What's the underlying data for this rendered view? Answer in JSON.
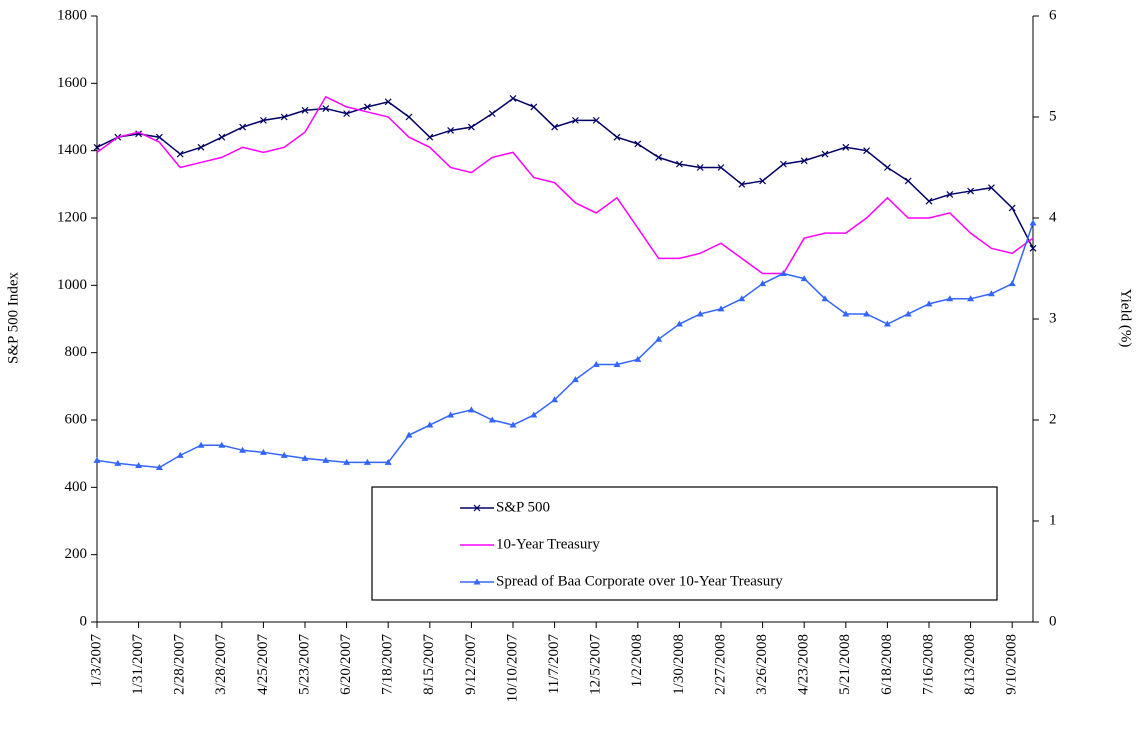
{
  "chart_data": {
    "type": "line",
    "y_label": "S&P 500 Index",
    "y2_label": "Yield (%)",
    "categories": [
      "1/3/2007",
      null,
      "1/31/2007",
      null,
      "2/28/2007",
      null,
      "3/28/2007",
      null,
      "4/25/2007",
      null,
      "5/23/2007",
      null,
      "6/20/2007",
      null,
      "7/18/2007",
      null,
      "8/15/2007",
      null,
      "9/12/2007",
      null,
      "10/10/2007",
      null,
      "11/7/2007",
      null,
      "12/5/2007",
      null,
      "1/2/2008",
      null,
      "1/30/2008",
      null,
      "2/27/2008",
      null,
      "3/26/2008",
      null,
      "4/23/2008",
      null,
      "5/21/2008",
      null,
      "6/18/2008",
      null,
      "7/16/2008",
      null,
      "8/13/2008",
      null,
      "9/10/2008",
      null
    ],
    "series": [
      {
        "name": "S&P 500",
        "color": "#000066",
        "marker": "x",
        "values": [
          1410,
          1440,
          1450,
          1440,
          1390,
          1410,
          1440,
          1470,
          1490,
          1500,
          1520,
          1525,
          1510,
          1530,
          1545,
          1500,
          1440,
          1460,
          1470,
          1510,
          1555,
          1530,
          1470,
          1490,
          1490,
          1440,
          1420,
          1380,
          1360,
          1350,
          1350,
          1300,
          1310,
          1360,
          1370,
          1390,
          1410,
          1400,
          1350,
          1310,
          1250,
          1270,
          1280,
          1290,
          1230,
          1110
        ]
      },
      {
        "name": "10-Year Treasury",
        "color": "#ff00ff",
        "axis": "y2",
        "values": [
          4.65,
          4.8,
          4.85,
          4.75,
          4.5,
          4.55,
          4.6,
          4.7,
          4.65,
          4.7,
          4.85,
          5.2,
          5.1,
          5.05,
          5.0,
          4.8,
          4.7,
          4.5,
          4.45,
          4.6,
          4.65,
          4.4,
          4.35,
          4.15,
          4.05,
          4.2,
          3.9,
          3.6,
          3.6,
          3.65,
          3.75,
          3.6,
          3.45,
          3.45,
          3.8,
          3.85,
          3.85,
          4.0,
          4.2,
          4.0,
          4.0,
          4.05,
          3.85,
          3.7,
          3.65,
          3.8
        ]
      },
      {
        "name": "Spread of Baa Corporate over 10-Year Treasury",
        "color": "#3366ff",
        "axis": "y2",
        "marker": "triangle",
        "values": [
          1.6,
          1.57,
          1.55,
          1.53,
          1.65,
          1.75,
          1.75,
          1.7,
          1.68,
          1.65,
          1.62,
          1.6,
          1.58,
          1.58,
          1.58,
          1.85,
          1.95,
          2.05,
          2.1,
          2.0,
          1.95,
          2.05,
          2.2,
          2.4,
          2.55,
          2.55,
          2.6,
          2.8,
          2.95,
          3.05,
          3.1,
          3.2,
          3.35,
          3.45,
          3.4,
          3.2,
          3.05,
          3.05,
          2.95,
          3.05,
          3.15,
          3.2,
          3.2,
          3.25,
          3.35,
          3.95
        ]
      }
    ],
    "ylim": [
      0,
      1800
    ],
    "yticks": [
      0,
      200,
      400,
      600,
      800,
      1000,
      1200,
      1400,
      1600,
      1800
    ],
    "y2lim": [
      0,
      6
    ],
    "y2ticks": [
      0,
      1,
      2,
      3,
      4,
      5,
      6
    ]
  }
}
